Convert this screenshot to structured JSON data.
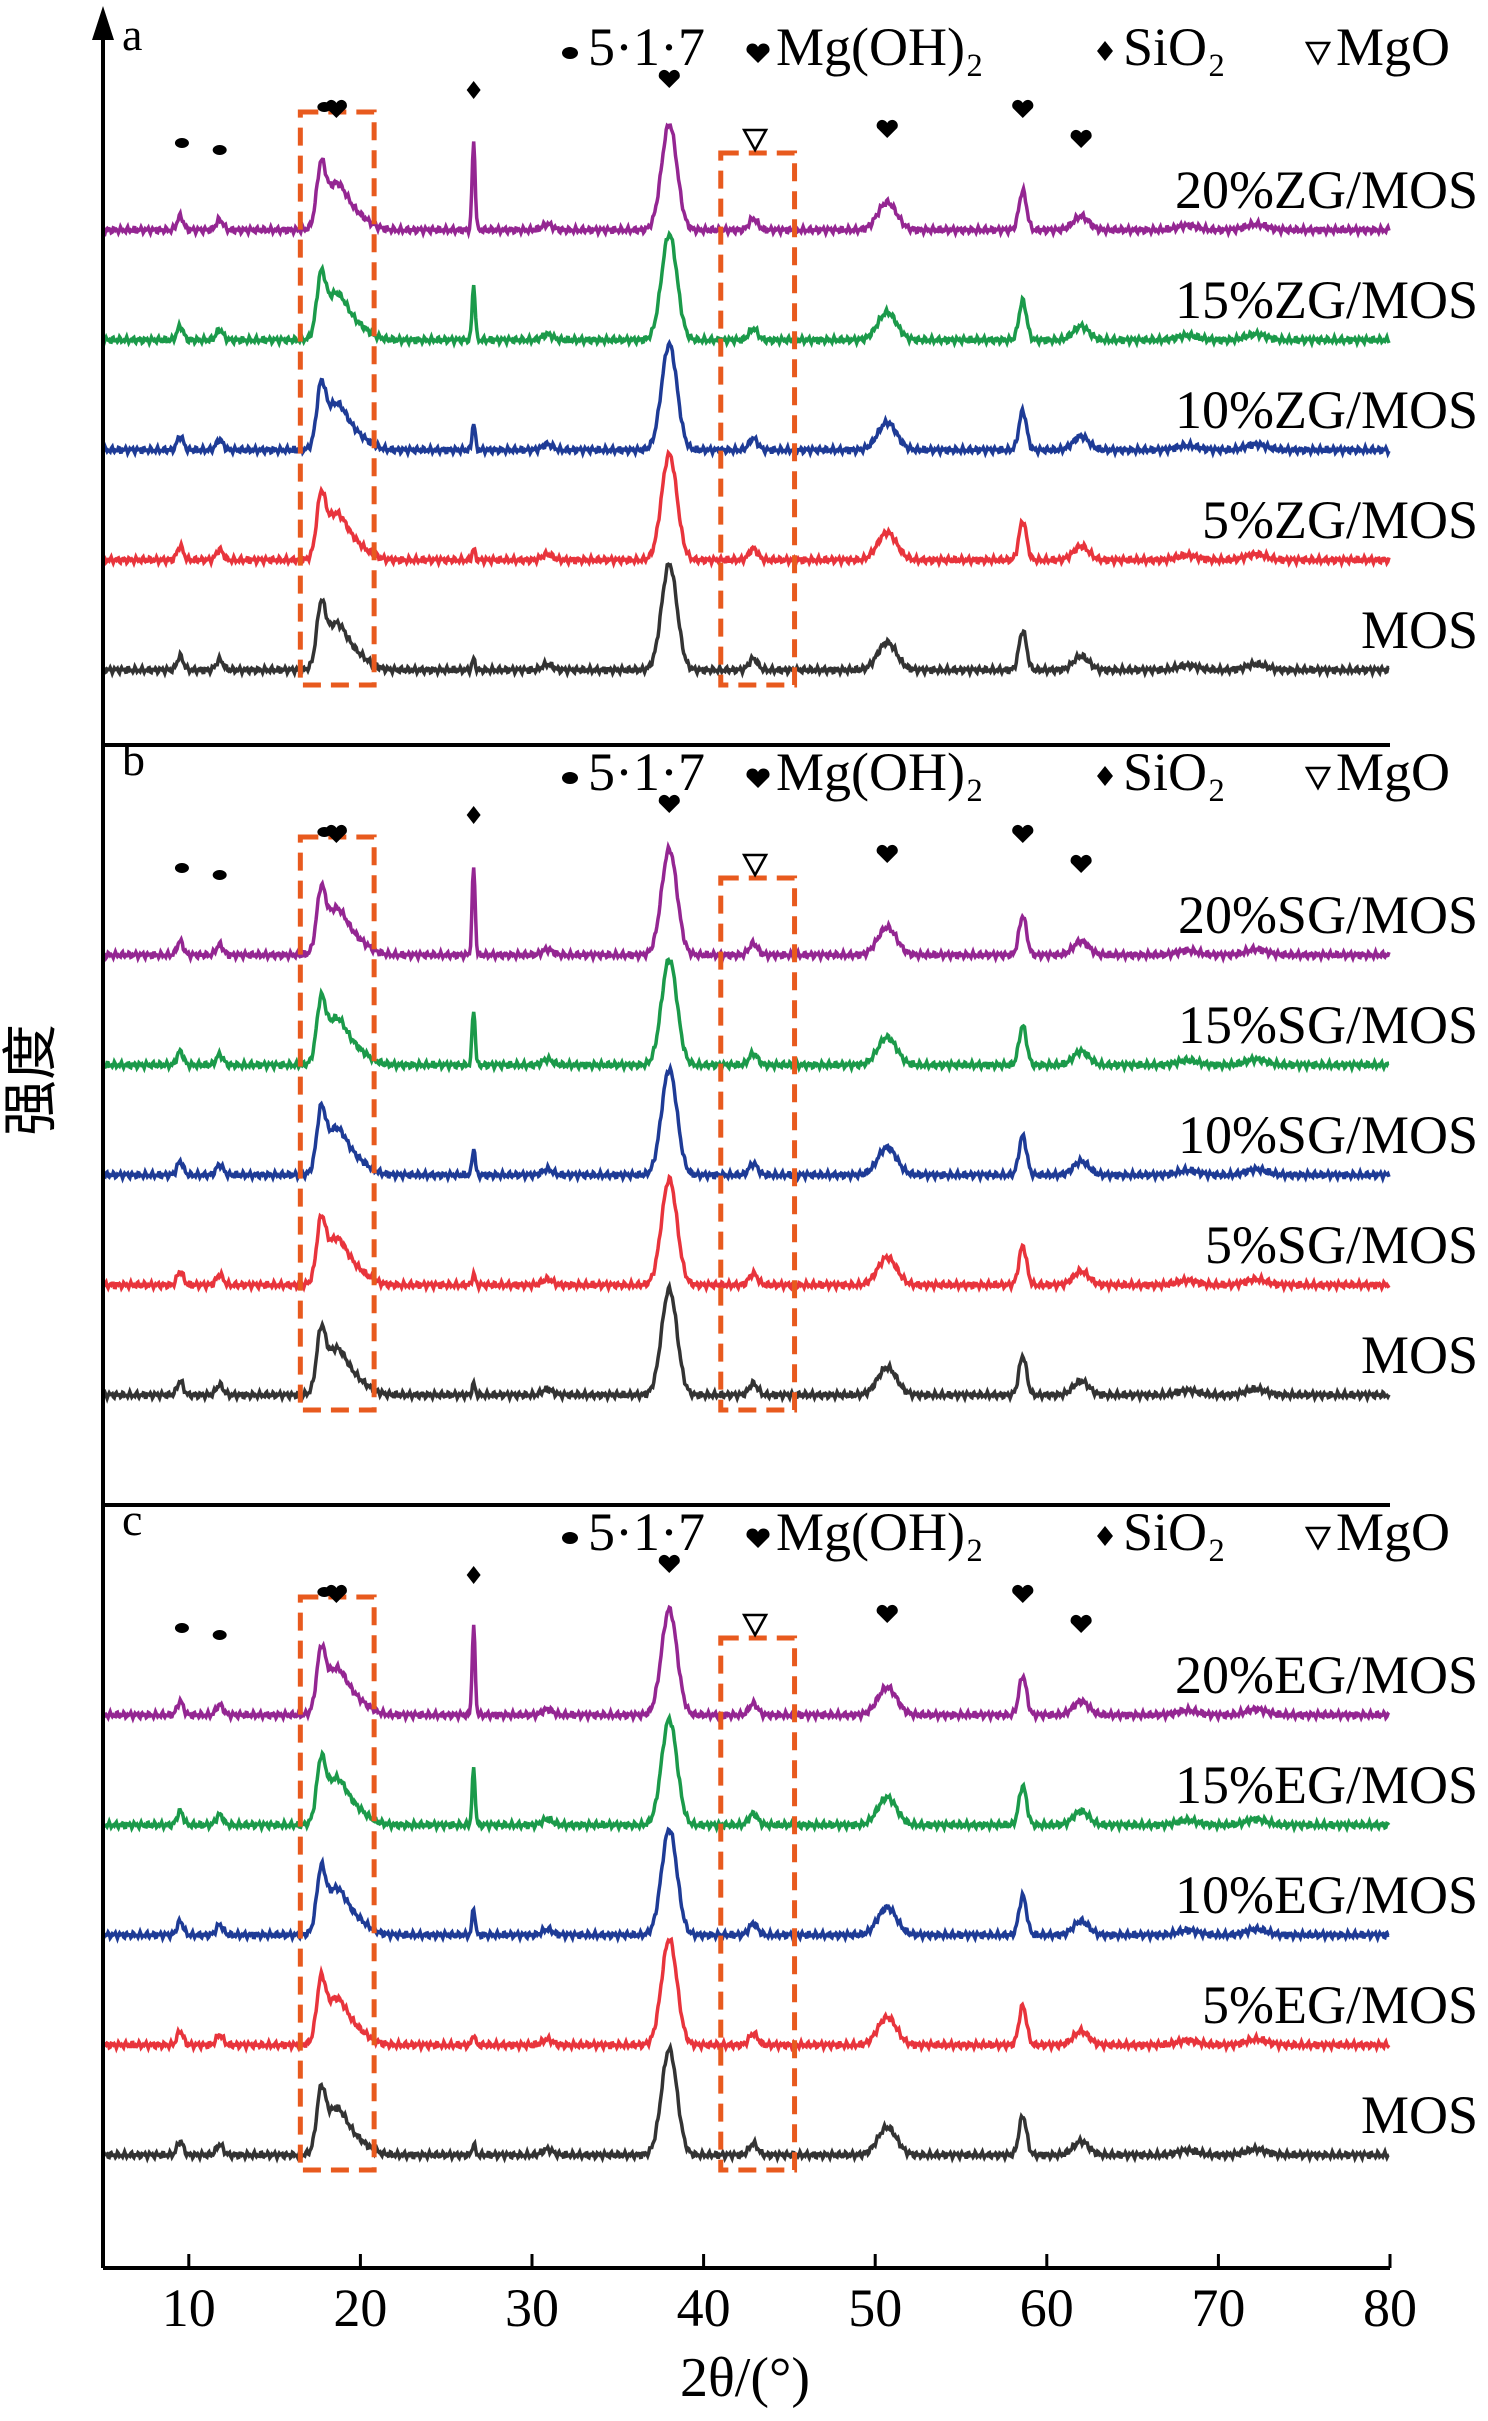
{
  "chart_data": {
    "type": "line",
    "xlabel": "2θ/(°)",
    "ylabel": "强度",
    "xlim": [
      5,
      80
    ],
    "xticks": [
      10,
      20,
      30,
      40,
      50,
      60,
      70,
      80
    ],
    "legend": {
      "placement": "top-right",
      "entries": [
        {
          "symbol": "dot",
          "label": "5·1·7"
        },
        {
          "symbol": "heart",
          "label": "Mg(OH)₂"
        },
        {
          "symbol": "diamond",
          "label": "SiO₂"
        },
        {
          "symbol": "triangle-down",
          "label": "MgO"
        }
      ]
    },
    "series_colors": [
      "#942692",
      "#1b9a4a",
      "#1e3b96",
      "#e8343c",
      "#333333"
    ],
    "box_color": "#e85a1e",
    "panels": [
      {
        "letter": "a",
        "series": [
          "20%ZG/MOS",
          "15%ZG/MOS",
          "10%ZG/MOS",
          "5%ZG/MOS",
          "MOS"
        ]
      },
      {
        "letter": "b",
        "series": [
          "20%SG/MOS",
          "15%SG/MOS",
          "10%SG/MOS",
          "5%SG/MOS",
          "MOS"
        ]
      },
      {
        "letter": "c",
        "series": [
          "20%EG/MOS",
          "15%EG/MOS",
          "10%EG/MOS",
          "5%EG/MOS",
          "MOS"
        ]
      }
    ]
  }
}
